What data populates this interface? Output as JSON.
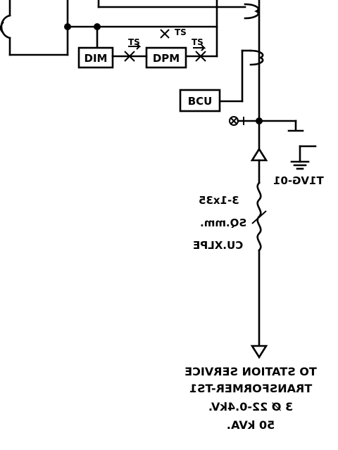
{
  "labels": {
    "dim": "DIM",
    "dpm": "DPM",
    "bcu": "BCU",
    "ts_left": "TS",
    "ts_mid": "TS",
    "ts_right": "TS",
    "vg": "T1VG-01"
  },
  "cable": {
    "line1": "3-1x35",
    "line2": "SQ.mm.",
    "line3": "CU.XLPE"
  },
  "destination": {
    "line1": "TO STATION SERVICE",
    "line2": "TRANSFORMER-TS1",
    "line3": "3 Ø 22-0.4kV.",
    "line4": "50 kVA."
  }
}
